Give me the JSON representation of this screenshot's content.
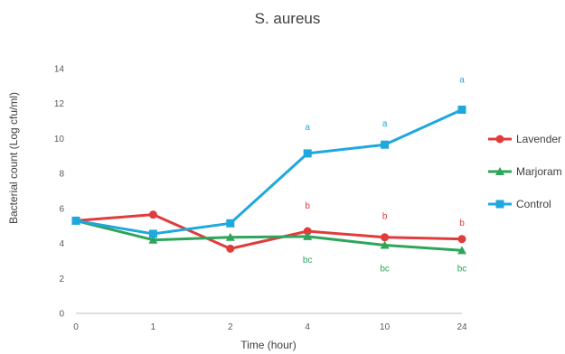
{
  "chart_data": {
    "type": "line",
    "title": "S. aureus",
    "xlabel": "Time (hour)",
    "ylabel": "Bacterial count (Log cfu/ml)",
    "categories": [
      "0",
      "1",
      "2",
      "4",
      "10",
      "24"
    ],
    "ylim": [
      0,
      14
    ],
    "yticks": [
      0,
      2,
      4,
      6,
      8,
      10,
      12,
      14
    ],
    "grid": false,
    "legend_position": "right",
    "series": [
      {
        "name": "Lavender",
        "color": "#e03c3c",
        "marker": "circle",
        "values": [
          5.3,
          5.65,
          3.7,
          4.7,
          4.35,
          4.25
        ]
      },
      {
        "name": "Marjoram",
        "color": "#2ea55a",
        "marker": "triangle",
        "values": [
          5.3,
          4.2,
          4.35,
          4.4,
          3.9,
          3.6
        ]
      },
      {
        "name": "Control",
        "color": "#1fa8dd",
        "marker": "square",
        "values": [
          5.3,
          4.55,
          5.15,
          9.15,
          9.65,
          11.65
        ]
      }
    ],
    "annotations": [
      {
        "category": "4",
        "text": "a",
        "color": "#1fa8dd",
        "y": 10.5
      },
      {
        "category": "10",
        "text": "a",
        "color": "#1fa8dd",
        "y": 10.7
      },
      {
        "category": "24",
        "text": "a",
        "color": "#1fa8dd",
        "y": 13.2
      },
      {
        "category": "4",
        "text": "b",
        "color": "#e03c3c",
        "y": 6.0
      },
      {
        "category": "10",
        "text": "b",
        "color": "#e03c3c",
        "y": 5.4
      },
      {
        "category": "24",
        "text": "b",
        "color": "#e03c3c",
        "y": 5.0
      },
      {
        "category": "4",
        "text": "bc",
        "color": "#2ea55a",
        "y": 2.9
      },
      {
        "category": "10",
        "text": "bc",
        "color": "#2ea55a",
        "y": 2.4
      },
      {
        "category": "24",
        "text": "bc",
        "color": "#2ea55a",
        "y": 2.4
      }
    ]
  }
}
